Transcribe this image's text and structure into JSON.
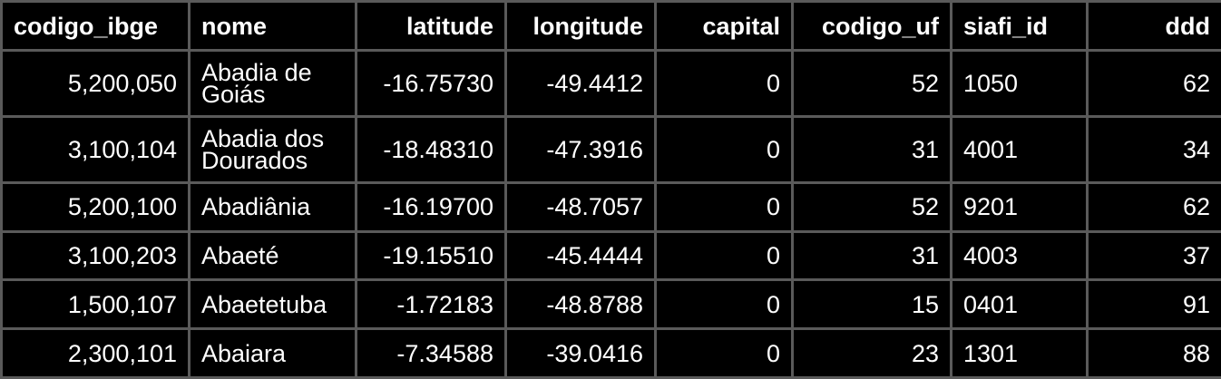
{
  "table": {
    "columns": [
      {
        "label": "codigo_ibge",
        "align": "left"
      },
      {
        "label": "nome",
        "align": "left"
      },
      {
        "label": "latitude",
        "align": "right"
      },
      {
        "label": "longitude",
        "align": "right"
      },
      {
        "label": "capital",
        "align": "right"
      },
      {
        "label": "codigo_uf",
        "align": "right"
      },
      {
        "label": "siafi_id",
        "align": "left"
      },
      {
        "label": "ddd",
        "align": "right"
      }
    ],
    "rows": [
      [
        "5,200,050",
        "Abadia de Goiás",
        "-16.75730",
        "-49.4412",
        "0",
        "52",
        "1050",
        "62"
      ],
      [
        "3,100,104",
        "Abadia dos Dourados",
        "-18.48310",
        "-47.3916",
        "0",
        "31",
        "4001",
        "34"
      ],
      [
        "5,200,100",
        "Abadiânia",
        "-16.19700",
        "-48.7057",
        "0",
        "52",
        "9201",
        "62"
      ],
      [
        "3,100,203",
        "Abaeté",
        "-19.15510",
        "-45.4444",
        "0",
        "31",
        "4003",
        "37"
      ],
      [
        "1,500,107",
        "Abaetetuba",
        "-1.72183",
        "-48.8788",
        "0",
        "15",
        "0401",
        "91"
      ],
      [
        "2,300,101",
        "Abaiara",
        "-7.34588",
        "-39.0416",
        "0",
        "23",
        "1301",
        "88"
      ]
    ]
  }
}
